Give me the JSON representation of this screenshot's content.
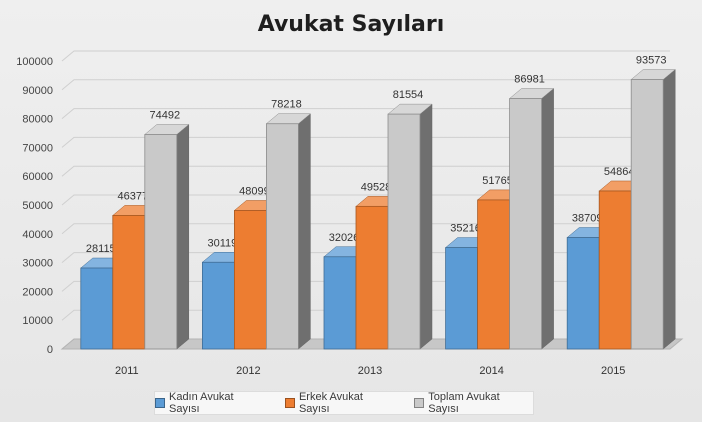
{
  "chart_data": {
    "type": "bar",
    "title": "Avukat Sayıları",
    "xlabel": "",
    "ylabel": "",
    "ylim": [
      0,
      100000
    ],
    "yticks": [
      "0",
      "10000",
      "20000",
      "30000",
      "40000",
      "50000",
      "60000",
      "70000",
      "80000",
      "90000",
      "100000"
    ],
    "grid": true,
    "legend_position": "bottom",
    "categories": [
      "2011",
      "2012",
      "2013",
      "2014",
      "2015"
    ],
    "series": [
      {
        "name": "Kadın Avukat Sayısı",
        "values": [
          28115,
          30119,
          32026,
          35216,
          38709
        ],
        "labels": [
          "28115",
          "30119",
          "32026",
          "35216",
          "38709"
        ],
        "color": "#5b9bd5"
      },
      {
        "name": "Erkek Avukat Sayısı",
        "values": [
          46377,
          48099,
          49528,
          51765,
          54864
        ],
        "labels": [
          "46377",
          "48099",
          "49528",
          "51765",
          "54864"
        ],
        "color": "#ed7d31"
      },
      {
        "name": "Toplam Avukat Sayısı",
        "values": [
          74492,
          78218,
          81554,
          86981,
          93573
        ],
        "labels": [
          "74492",
          "78218",
          "81554",
          "86981",
          "93573"
        ],
        "color": "#c9c9c9"
      }
    ]
  }
}
